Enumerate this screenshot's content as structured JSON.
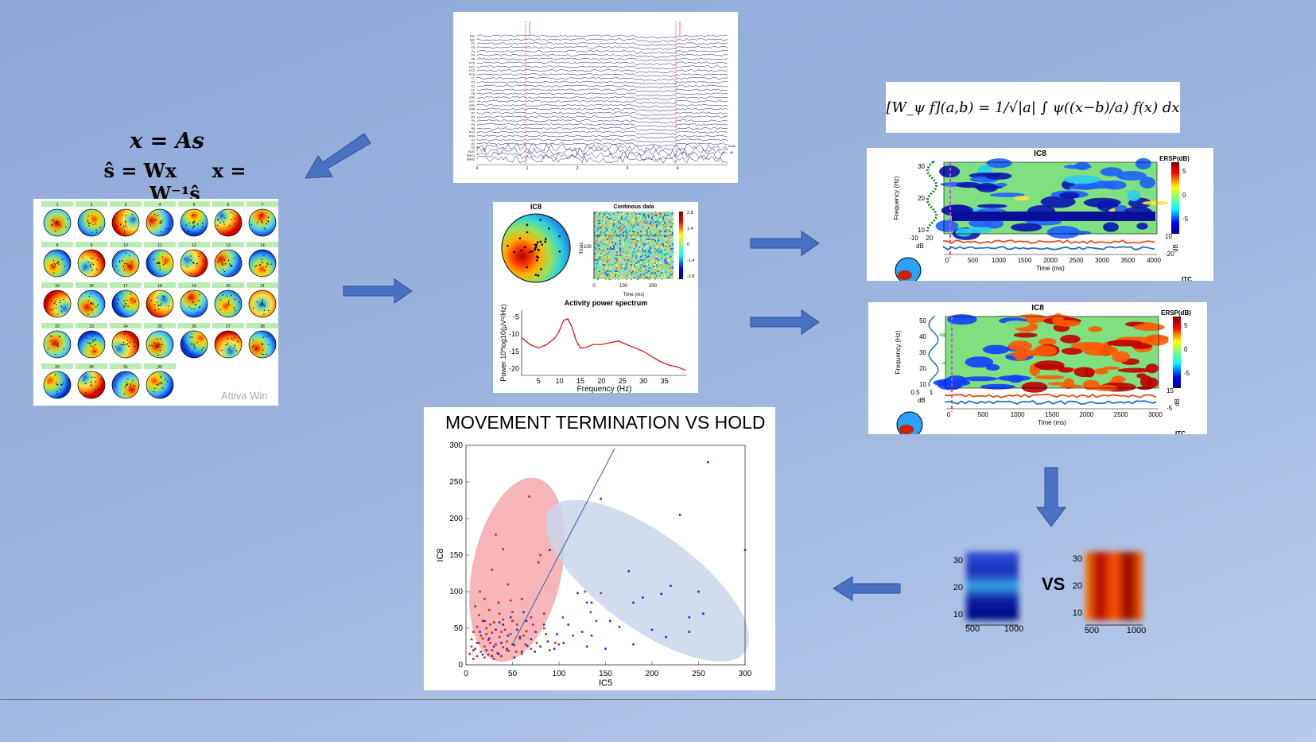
{
  "ica_equations": {
    "line1": "x = As",
    "line2a": "ŝ = Wx",
    "line2b": "x = W⁻¹ŝ"
  },
  "topo_grid": {
    "labels": [
      "1",
      "2",
      "3",
      "4",
      "5",
      "6",
      "7",
      "8",
      "9",
      "10",
      "11",
      "12",
      "13",
      "14",
      "15",
      "16",
      "17",
      "18",
      "19",
      "20",
      "21",
      "22",
      "23",
      "24",
      "25",
      "26",
      "27",
      "28",
      "29",
      "30",
      "31",
      "32"
    ],
    "watermark": "Attiva Win"
  },
  "eeg_raw": {
    "channels": [
      "Fp1",
      "Fp2",
      "F7",
      "F3",
      "Fz",
      "F4",
      "F8",
      "FC5",
      "FC1",
      "FC2",
      "FC6",
      "T7",
      "C3",
      "Cz",
      "C4",
      "T8",
      "CP5",
      "CP1",
      "CP2",
      "CP6",
      "P7",
      "P3",
      "Pz",
      "P4",
      "P8",
      "PO3",
      "PO4",
      "O1",
      "Oz",
      "O2",
      "EOG",
      "EMG1",
      "EMG2"
    ],
    "markers": [
      "StimulusC",
      "StimulusC"
    ],
    "xticks": [
      "0",
      "1",
      "2",
      "3",
      "4"
    ],
    "scale_label": "Scale",
    "scale_value": "44"
  },
  "ic_props": {
    "title": "IC8",
    "erp_title": "Continous data",
    "erp_ylabel": "Trials",
    "erp_xlabel": "Time (ms)",
    "erp_ytick": "100",
    "erp_xticks": [
      "0",
      "100",
      "200"
    ],
    "colorbar_ticks": [
      "2.8",
      "1.4",
      "0",
      "-1.4",
      "-2.8"
    ],
    "spec_title": "Activity power spectrum",
    "spec_xlabel": "Frequency (Hz)",
    "spec_ylabel": "Power 10*log10(μV²/Hz)",
    "spec_xticks": [
      "5",
      "10",
      "15",
      "20",
      "25",
      "30",
      "35"
    ],
    "spec_yticks": [
      "-5",
      "-10",
      "-15",
      "-20"
    ]
  },
  "wavelet_formula": "[W_ψ f](a,b) = 1/√|a| ∫ ψ((x−b)/a) f(x) dx",
  "ersp1": {
    "title": "IC8",
    "cb_label": "ERSP(dB)",
    "cb_ticks": [
      "5",
      "0",
      "-5"
    ],
    "yticks": [
      "30",
      "20",
      "10"
    ],
    "ylabel": "Frequency (Hz)",
    "xticks": [
      "0",
      "500",
      "1000",
      "1500",
      "2000",
      "2500",
      "3000",
      "3500",
      "4000"
    ],
    "xlabel": "Time (ms)",
    "dbticks": [
      "-10",
      "20"
    ],
    "db_label": "dB",
    "itc_ticks": [
      "10",
      "-20"
    ],
    "itc_db": "dB",
    "itc": "ITC"
  },
  "ersp2": {
    "title": "IC8",
    "cb_label": "ERSP(dB)",
    "cb_ticks": [
      "5",
      "0",
      "-5"
    ],
    "yticks": [
      "50",
      "40",
      "30",
      "20",
      "10"
    ],
    "ylabel": "Frequency (Hz)",
    "xticks": [
      "0",
      "500",
      "1000",
      "1500",
      "2000",
      "2500",
      "3000"
    ],
    "xlabel": "Time (ms)",
    "dbticks": [
      "0.5",
      "1"
    ],
    "db_label": "dB",
    "itc_ticks": [
      "15",
      "-5"
    ],
    "itc_db": "dB",
    "itc": "ITC"
  },
  "crops": {
    "left_yticks": [
      "30",
      "20",
      "10"
    ],
    "left_xticks": [
      "500",
      "1000"
    ],
    "right_yticks": [
      "30",
      "20",
      "10"
    ],
    "right_xticks": [
      "500",
      "1000"
    ],
    "vs": "VS"
  },
  "colors": {
    "hold": "#d8281f",
    "termination": "#2430d8",
    "arrow": "#4a72c4",
    "bg": "#9cb4de"
  },
  "chart_data": {
    "type": "scatter",
    "title": "MOVEMENT TERMINATION VS HOLD",
    "xlabel": "IC5",
    "ylabel": "IC8",
    "xlim": [
      0,
      300
    ],
    "ylim": [
      0,
      300
    ],
    "xticks": [
      "0",
      "50",
      "100",
      "150",
      "200",
      "250",
      "300"
    ],
    "yticks": [
      "0",
      "50",
      "100",
      "150",
      "200",
      "250",
      "300"
    ],
    "series": [
      {
        "color": "#d8281f",
        "points": [
          [
            68,
            230
          ],
          [
            32,
            178
          ],
          [
            40,
            158
          ],
          [
            80,
            150
          ],
          [
            78,
            140
          ],
          [
            28,
            130
          ],
          [
            45,
            110
          ],
          [
            15,
            100
          ],
          [
            20,
            90
          ],
          [
            60,
            90
          ],
          [
            35,
            85
          ],
          [
            10,
            80
          ],
          [
            25,
            75
          ],
          [
            50,
            72
          ],
          [
            70,
            65
          ],
          [
            40,
            62
          ],
          [
            18,
            60
          ],
          [
            30,
            58
          ],
          [
            55,
            55
          ],
          [
            12,
            52
          ],
          [
            22,
            50
          ],
          [
            42,
            48
          ],
          [
            65,
            46
          ],
          [
            8,
            45
          ],
          [
            28,
            44
          ],
          [
            48,
            42
          ],
          [
            16,
            40
          ],
          [
            36,
            38
          ],
          [
            58,
            36
          ],
          [
            6,
            35
          ],
          [
            24,
            34
          ],
          [
            44,
            32
          ],
          [
            14,
            30
          ],
          [
            32,
            28
          ],
          [
            52,
            27
          ],
          [
            20,
            25
          ],
          [
            40,
            24
          ],
          [
            10,
            22
          ],
          [
            28,
            20
          ],
          [
            46,
            19
          ],
          [
            16,
            18
          ],
          [
            34,
            16
          ],
          [
            24,
            14
          ],
          [
            12,
            12
          ],
          [
            38,
            12
          ],
          [
            20,
            10
          ],
          [
            30,
            8
          ],
          [
            8,
            8
          ],
          [
            26,
            30
          ],
          [
            38,
            45
          ],
          [
            62,
            40
          ],
          [
            72,
            55
          ],
          [
            84,
            50
          ],
          [
            50,
            60
          ],
          [
            6,
            25
          ],
          [
            18,
            36
          ],
          [
            44,
            20
          ],
          [
            54,
            18
          ],
          [
            64,
            28
          ],
          [
            86,
            42
          ],
          [
            90,
            20
          ],
          [
            96,
            30
          ],
          [
            128,
            100
          ],
          [
            145,
            98
          ],
          [
            130,
            85
          ],
          [
            140,
            60
          ],
          [
            115,
            40
          ],
          [
            100,
            28
          ],
          [
            104,
            65
          ],
          [
            134,
            72
          ],
          [
            84,
            70
          ],
          [
            60,
            15
          ],
          [
            70,
            22
          ],
          [
            4,
            15
          ],
          [
            22,
            42
          ],
          [
            36,
            70
          ],
          [
            26,
            55
          ],
          [
            14,
            68
          ],
          [
            48,
            88
          ],
          [
            76,
            30
          ]
        ]
      },
      {
        "color": "#2430d8",
        "points": [
          [
            260,
            277
          ],
          [
            145,
            227
          ],
          [
            230,
            205
          ],
          [
            90,
            157
          ],
          [
            300,
            157
          ],
          [
            175,
            128
          ],
          [
            220,
            108
          ],
          [
            250,
            100
          ],
          [
            210,
            97
          ],
          [
            190,
            92
          ],
          [
            120,
            98
          ],
          [
            135,
            85
          ],
          [
            180,
            85
          ],
          [
            255,
            70
          ],
          [
            240,
            65
          ],
          [
            155,
            60
          ],
          [
            110,
            55
          ],
          [
            165,
            52
          ],
          [
            200,
            48
          ],
          [
            125,
            45
          ],
          [
            240,
            45
          ],
          [
            135,
            40
          ],
          [
            215,
            38
          ],
          [
            98,
            42
          ],
          [
            105,
            30
          ],
          [
            180,
            28
          ],
          [
            130,
            25
          ],
          [
            150,
            22
          ],
          [
            95,
            22
          ],
          [
            88,
            32
          ],
          [
            75,
            45
          ],
          [
            65,
            60
          ],
          [
            55,
            48
          ],
          [
            45,
            40
          ],
          [
            38,
            30
          ],
          [
            30,
            25
          ],
          [
            22,
            20
          ],
          [
            15,
            45
          ],
          [
            25,
            36
          ],
          [
            35,
            15
          ],
          [
            50,
            28
          ],
          [
            60,
            18
          ],
          [
            70,
            35
          ],
          [
            80,
            25
          ],
          [
            40,
            55
          ],
          [
            20,
            60
          ],
          [
            12,
            30
          ],
          [
            32,
            48
          ],
          [
            48,
            65
          ],
          [
            58,
            38
          ],
          [
            8,
            20
          ],
          [
            28,
            12
          ],
          [
            44,
            22
          ],
          [
            66,
            26
          ],
          [
            18,
            14
          ],
          [
            36,
            58
          ],
          [
            52,
            10
          ],
          [
            74,
            18
          ],
          [
            84,
            55
          ],
          [
            62,
            72
          ]
        ]
      }
    ],
    "ellipses": [
      {
        "color": "#f4a8ad",
        "cx": 55,
        "cy": 130,
        "rx": 48,
        "ry": 128,
        "angle": 12
      },
      {
        "color": "#c9d6ea",
        "cx": 195,
        "cy": 115,
        "rx": 130,
        "ry": 65,
        "angle": 36
      }
    ],
    "divider": [
      [
        50,
        28
      ],
      [
        160,
        296
      ]
    ],
    "grid": false
  }
}
